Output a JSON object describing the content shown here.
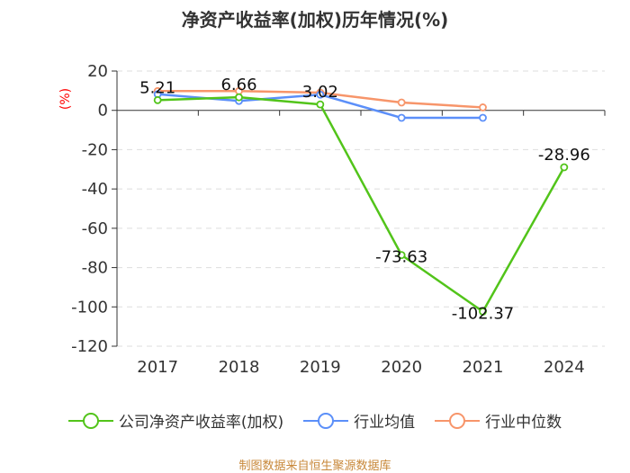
{
  "chart_data": {
    "type": "line",
    "title": "净资产收益率(加权)历年情况(%)",
    "ylabel": "(%)",
    "xlabel": "",
    "ylim": [
      -120,
      20
    ],
    "yticks": [
      20,
      0,
      -20,
      -40,
      -60,
      -80,
      -100,
      -120
    ],
    "grid": true,
    "legend_position": "bottom",
    "categories": [
      "2017",
      "2018",
      "2019",
      "2020",
      "2021",
      "2024"
    ],
    "series": [
      {
        "name": "公司净资产收益率(加权)",
        "color": "#52c41a",
        "values": [
          5.21,
          6.66,
          3.02,
          -73.63,
          -102.37,
          -28.96
        ],
        "labels": [
          "5.21",
          "6.66",
          "3.02",
          "-73.63",
          "-102.37",
          "-28.96"
        ]
      },
      {
        "name": "行业均值",
        "color": "#5b8ff9",
        "values": [
          8.2,
          4.8,
          8.0,
          -3.8,
          -3.8,
          null
        ]
      },
      {
        "name": "行业中位数",
        "color": "#f7956a",
        "values": [
          9.8,
          9.8,
          9.0,
          4.0,
          1.5,
          null
        ]
      }
    ]
  },
  "source_note": "制图数据来自恒生聚源数据库"
}
